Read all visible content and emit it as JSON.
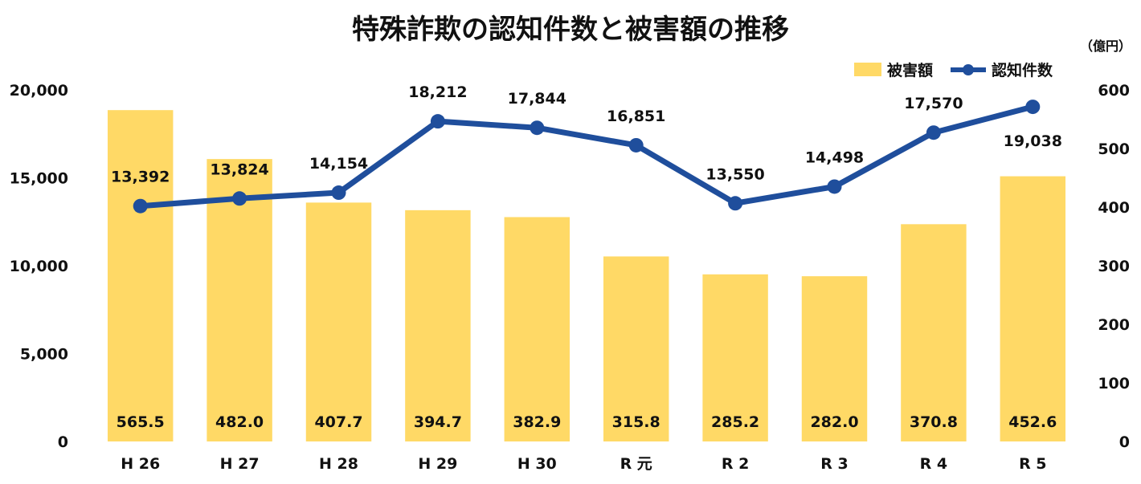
{
  "colors": {
    "bar": "#FFD966",
    "line": "#1F4E9C"
  },
  "chart_data": {
    "type": "bar+line",
    "title": "特殊詐欺の認知件数と被害額の推移",
    "categories": [
      "H26",
      "H27",
      "H28",
      "H29",
      "H30",
      "R元",
      "R2",
      "R3",
      "R4",
      "R5"
    ],
    "category_labels": [
      "H 26",
      "H 27",
      "H 28",
      "H 29",
      "H 30",
      "R 元",
      "R 2",
      "R 3",
      "R 4",
      "R 5"
    ],
    "series": [
      {
        "name": "被害額",
        "type": "bar",
        "axis": "right",
        "values": [
          565.5,
          482.0,
          407.7,
          394.7,
          382.9,
          315.8,
          285.2,
          282.0,
          370.8,
          452.6
        ],
        "labels": [
          "565.5",
          "482.0",
          "407.7",
          "394.7",
          "382.9",
          "315.8",
          "285.2",
          "282.0",
          "370.8",
          "452.6"
        ]
      },
      {
        "name": "認知件数",
        "type": "line",
        "axis": "left",
        "values": [
          13392,
          13824,
          14154,
          18212,
          17844,
          16851,
          13550,
          14498,
          17570,
          19038
        ],
        "labels": [
          "13,392",
          "13,824",
          "14,154",
          "18,212",
          "17,844",
          "16,851",
          "13,550",
          "14,498",
          "17,570",
          "19,038"
        ]
      }
    ],
    "left_axis": {
      "ylim": [
        0,
        20000
      ],
      "ticks": [
        0,
        5000,
        10000,
        15000,
        20000
      ],
      "tick_labels": [
        "0",
        "5,000",
        "10,000",
        "15,000",
        "20,000"
      ]
    },
    "right_axis": {
      "ylim": [
        0,
        600
      ],
      "ticks": [
        0,
        100,
        200,
        300,
        400,
        500,
        600
      ],
      "tick_labels": [
        "0",
        "100",
        "200",
        "300",
        "400",
        "500",
        "600"
      ],
      "unit": "（億円）"
    },
    "legend": {
      "position": "top-right",
      "items": [
        "被害額",
        "認知件数"
      ]
    },
    "grid": false
  }
}
